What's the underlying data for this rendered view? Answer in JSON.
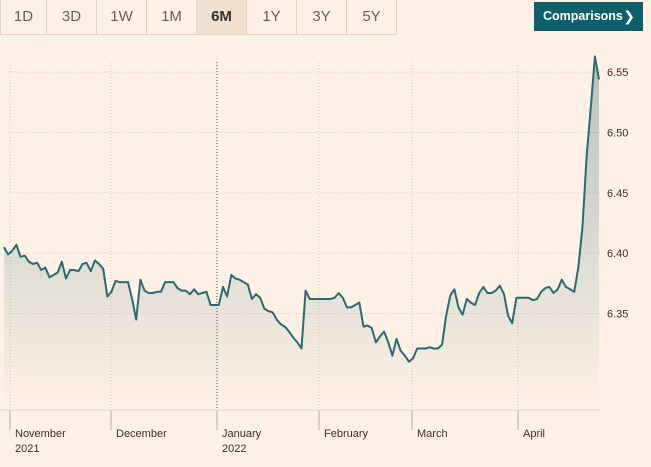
{
  "ranges": [
    "1D",
    "3D",
    "1W",
    "1M",
    "6M",
    "1Y",
    "3Y",
    "5Y"
  ],
  "active_range": "6M",
  "comparisons_label": "Comparisons",
  "comparisons_icon": "chevron-right-icon",
  "colors": {
    "line": "#2a6b73",
    "accent_button": "#0f5f6b",
    "background": "#fff1e5"
  },
  "chart_data": {
    "type": "area",
    "title": "",
    "xlabel": "",
    "ylabel": "",
    "y_axis_position": "right",
    "ylim": [
      6.27,
      6.575
    ],
    "y_ticks": [
      6.35,
      6.4,
      6.45,
      6.5,
      6.55
    ],
    "y_tick_labels": [
      "6.35",
      "6.40",
      "6.45",
      "6.50",
      "6.55"
    ],
    "x_ticks": [
      {
        "label": "November",
        "sublabel": "2021"
      },
      {
        "label": "December",
        "sublabel": ""
      },
      {
        "label": "January",
        "sublabel": "2022"
      },
      {
        "label": "February",
        "sublabel": ""
      },
      {
        "label": "March",
        "sublabel": ""
      },
      {
        "label": "April",
        "sublabel": ""
      }
    ],
    "grid": true,
    "series": [
      {
        "values": [
          6.405,
          6.399,
          6.402,
          6.407,
          6.397,
          6.398,
          6.393,
          6.391,
          6.392,
          6.386,
          6.388,
          6.38,
          6.382,
          6.384,
          6.393,
          6.379,
          6.386,
          6.386,
          6.385,
          6.391,
          6.392,
          6.385,
          6.394,
          6.391,
          6.387,
          6.364,
          6.368,
          6.377,
          6.376,
          6.376,
          6.376,
          6.362,
          6.345,
          6.378,
          6.369,
          6.367,
          6.367,
          6.368,
          6.368,
          6.376,
          6.376,
          6.376,
          6.371,
          6.369,
          6.369,
          6.366,
          6.37,
          6.366,
          6.367,
          6.368,
          6.357,
          6.357,
          6.357,
          6.372,
          6.364,
          6.382,
          6.379,
          6.378,
          6.376,
          6.374,
          6.362,
          6.366,
          6.363,
          6.354,
          6.352,
          6.351,
          6.345,
          6.341,
          6.339,
          6.335,
          6.33,
          6.326,
          6.321,
          6.369,
          6.362,
          6.362,
          6.362,
          6.362,
          6.362,
          6.362,
          6.363,
          6.367,
          6.363,
          6.355,
          6.355,
          6.357,
          6.359,
          6.339,
          6.34,
          6.338,
          6.326,
          6.331,
          6.335,
          6.326,
          6.315,
          6.329,
          6.319,
          6.315,
          6.31,
          6.313,
          6.321,
          6.321,
          6.321,
          6.322,
          6.321,
          6.321,
          6.324,
          6.348,
          6.365,
          6.37,
          6.355,
          6.349,
          6.362,
          6.359,
          6.357,
          6.367,
          6.372,
          6.367,
          6.367,
          6.369,
          6.373,
          6.366,
          6.348,
          6.342,
          6.363,
          6.363,
          6.363,
          6.363,
          6.361,
          6.362,
          6.368,
          6.371,
          6.372,
          6.367,
          6.37,
          6.378,
          6.372,
          6.37,
          6.368,
          6.388,
          6.422,
          6.48,
          6.52,
          6.563,
          6.544
        ]
      }
    ]
  }
}
